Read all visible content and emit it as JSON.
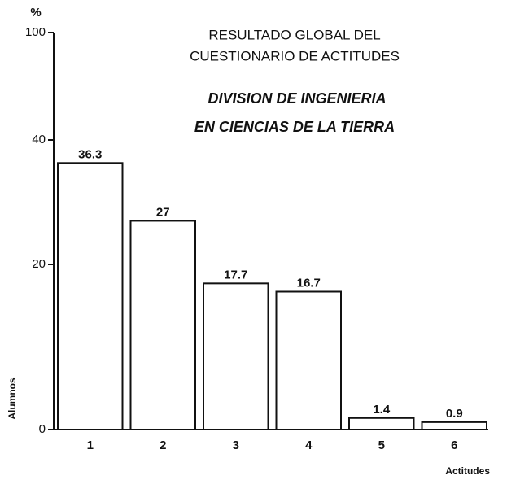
{
  "chart_data": {
    "type": "bar",
    "title": [
      "RESULTADO GLOBAL DEL",
      "CUESTIONARIO DE ACTITUDES"
    ],
    "subtitle": [
      "DIVISION DE INGENIERIA",
      "EN CIENCIAS DE LA TIERRA"
    ],
    "y_unit": "%",
    "y_label": "Alumnos",
    "x_label": "Actitudes",
    "categories": [
      "1",
      "2",
      "3",
      "4",
      "5",
      "6"
    ],
    "values": [
      36.3,
      27,
      17.7,
      16.7,
      1.4,
      0.9
    ],
    "color": "#ffffff",
    "ylim": [
      0,
      100
    ],
    "yticks": [
      0,
      20,
      40,
      100
    ]
  }
}
